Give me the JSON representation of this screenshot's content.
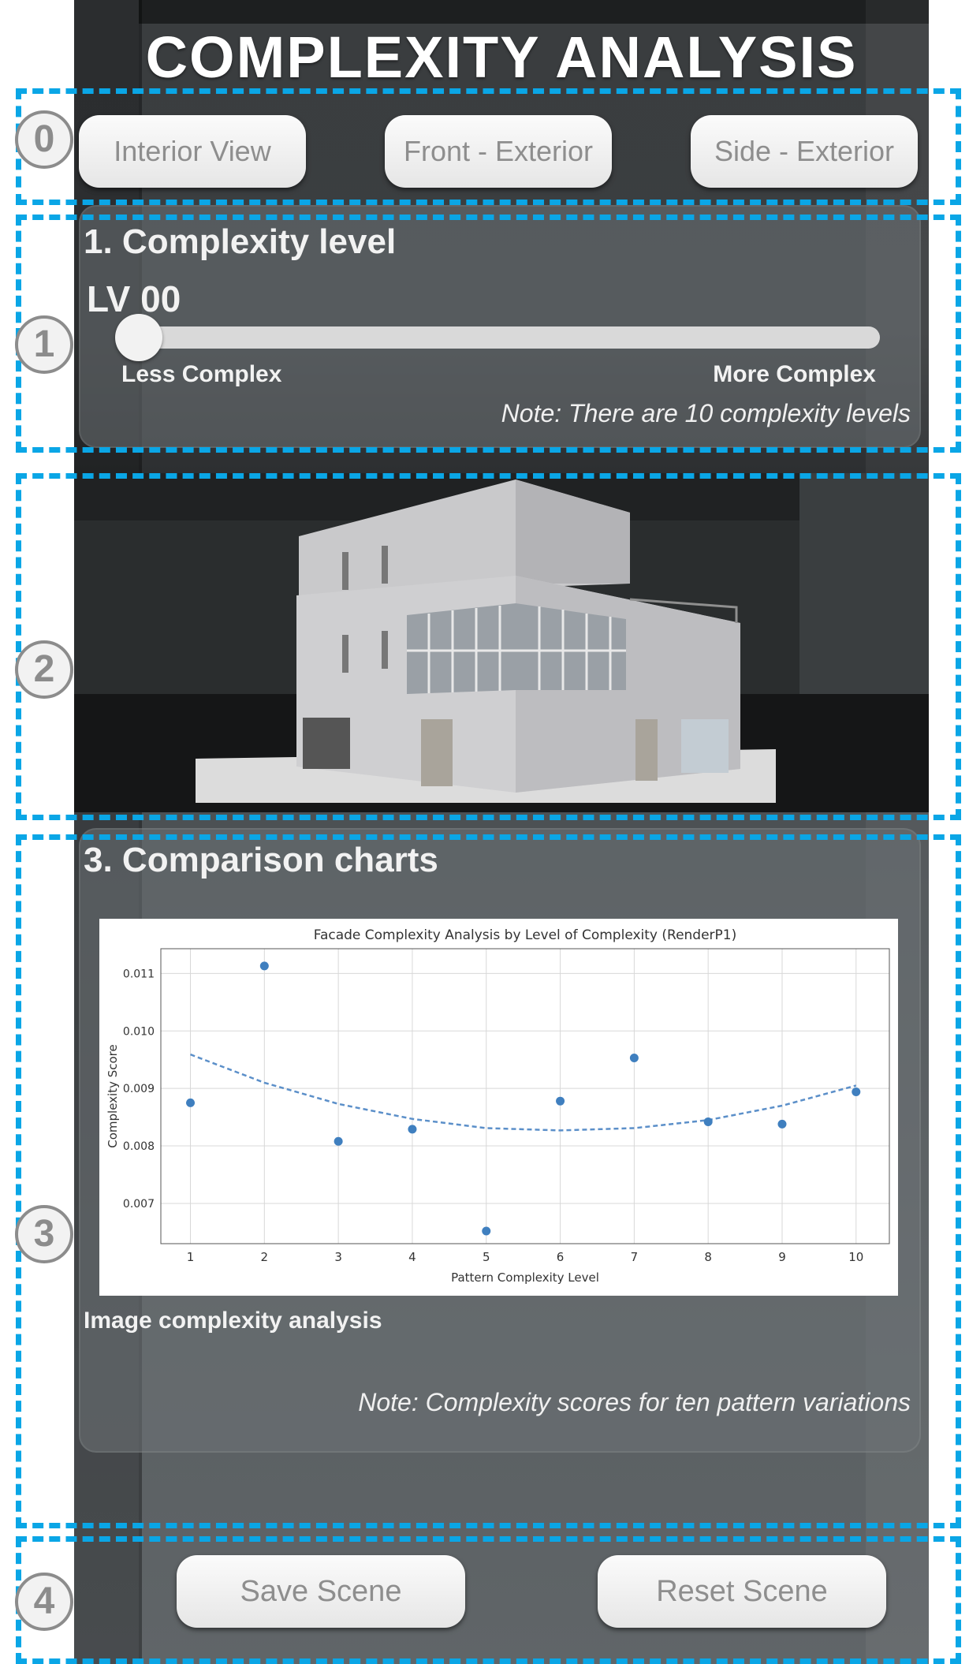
{
  "header": {
    "title": "COMPLEXITY ANALYSIS"
  },
  "annotations": {
    "badges": [
      "0",
      "1",
      "2",
      "3",
      "4"
    ]
  },
  "views": {
    "buttons": [
      "Interior View",
      "Front - Exterior",
      "Side - Exterior"
    ]
  },
  "complexity": {
    "title": "1. Complexity level",
    "level_label": "LV 00",
    "slider_value": 0,
    "less_label": "Less Complex",
    "more_label": "More Complex",
    "note": "Note: There are 10 complexity levels"
  },
  "comparison": {
    "title": "3. Comparison charts",
    "caption": "Image complexity analysis",
    "note": "Note: Complexity scores for ten pattern variations"
  },
  "chart_data": {
    "type": "scatter",
    "title": "Facade Complexity Analysis by Level of Complexity (RenderP1)",
    "xlabel": "Pattern Complexity Level",
    "ylabel": "Complexity Score",
    "x": [
      1,
      2,
      3,
      4,
      5,
      6,
      7,
      8,
      9,
      10
    ],
    "y": [
      0.00875,
      0.01113,
      0.00808,
      0.00829,
      0.00652,
      0.00878,
      0.00953,
      0.00842,
      0.00838,
      0.00894
    ],
    "trend": {
      "x": [
        1,
        2,
        3,
        4,
        5,
        6,
        7,
        8,
        9,
        10
      ],
      "y": [
        0.00959,
        0.0091,
        0.00873,
        0.00847,
        0.00831,
        0.00827,
        0.00831,
        0.00845,
        0.0087,
        0.00905
      ]
    },
    "xticks": [
      "1",
      "2",
      "3",
      "4",
      "5",
      "6",
      "7",
      "8",
      "9",
      "10"
    ],
    "yticks": [
      "0.007",
      "0.008",
      "0.009",
      "0.010",
      "0.011"
    ],
    "xlim": [
      0.6,
      10.45
    ],
    "ylim": [
      0.0063,
      0.01143
    ],
    "grid": true,
    "colors": {
      "points": "#3f7fbf",
      "trend": "#5b8fc9"
    }
  },
  "scene": {
    "save_label": "Save Scene",
    "reset_label": "Reset Scene"
  }
}
